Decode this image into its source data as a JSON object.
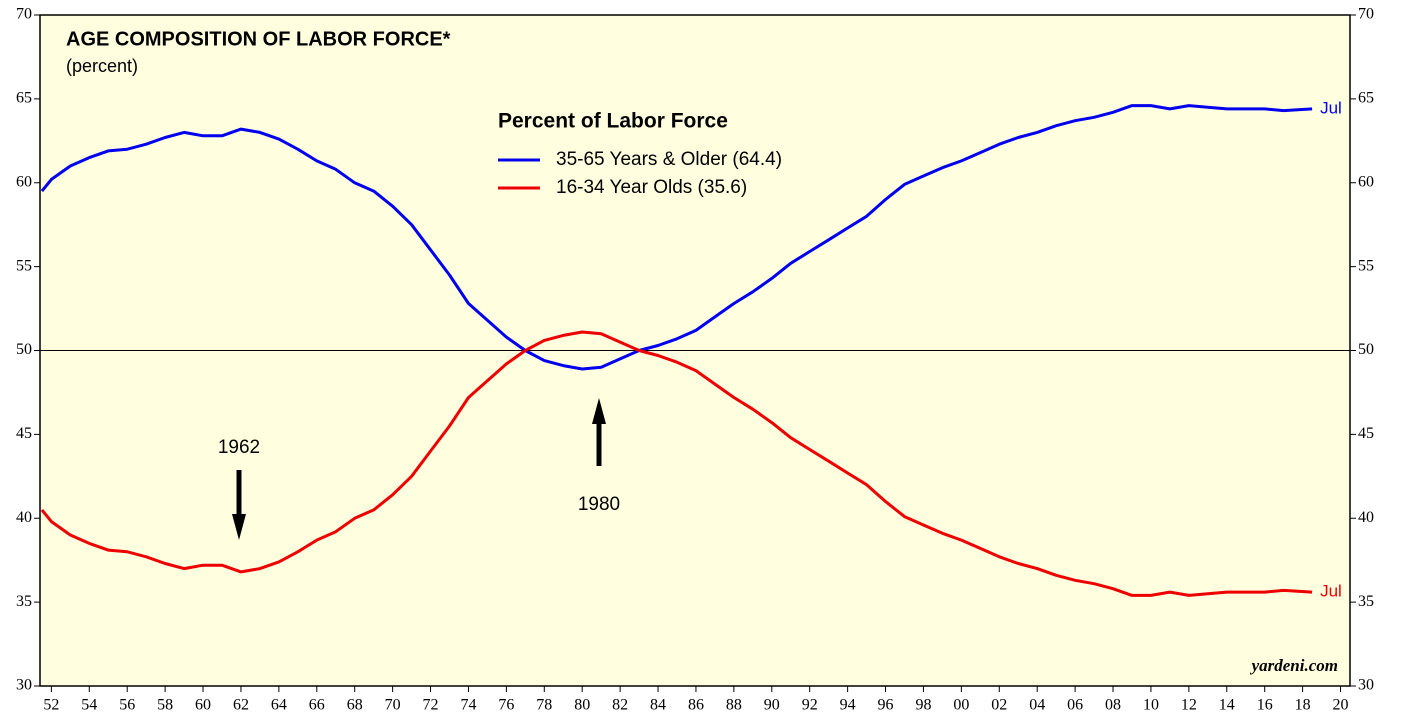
{
  "chart_data": {
    "type": "line",
    "title": "AGE COMPOSITION OF LABOR FORCE*",
    "subtitle": "(percent)",
    "legend_title": "Percent of Labor Force",
    "source": "yardeni.com",
    "annotations": [
      "1962",
      "1980"
    ],
    "reference_line": 50,
    "x": [
      1951.5,
      1952,
      1953,
      1954,
      1955,
      1956,
      1957,
      1958,
      1959,
      1960,
      1961,
      1962,
      1963,
      1964,
      1965,
      1966,
      1967,
      1968,
      1969,
      1970,
      1971,
      1972,
      1973,
      1974,
      1975,
      1976,
      1977,
      1978,
      1979,
      1980,
      1981,
      1982,
      1983,
      1984,
      1985,
      1986,
      1987,
      1988,
      1989,
      1990,
      1991,
      1992,
      1993,
      1994,
      1995,
      1996,
      1997,
      1998,
      1999,
      2000,
      2001,
      2002,
      2003,
      2004,
      2005,
      2006,
      2007,
      2008,
      2009,
      2010,
      2011,
      2012,
      2013,
      2014,
      2015,
      2016,
      2017,
      2018.5
    ],
    "series": [
      {
        "name": "35-65 Years & Older (64.4)",
        "color": "#0000ee",
        "end_label": "Jul",
        "values": [
          59.5,
          60.2,
          61.0,
          61.5,
          61.9,
          62.0,
          62.3,
          62.7,
          63.0,
          62.8,
          62.8,
          63.2,
          63.0,
          62.6,
          62.0,
          61.3,
          60.8,
          60.0,
          59.5,
          58.6,
          57.5,
          56.0,
          54.5,
          52.8,
          51.8,
          50.8,
          50.0,
          49.4,
          49.1,
          48.9,
          49.0,
          49.5,
          50.0,
          50.3,
          50.7,
          51.2,
          52.0,
          52.8,
          53.5,
          54.3,
          55.2,
          55.9,
          56.6,
          57.3,
          58.0,
          59.0,
          59.9,
          60.4,
          60.9,
          61.3,
          61.8,
          62.3,
          62.7,
          63.0,
          63.4,
          63.7,
          63.9,
          64.2,
          64.6,
          64.6,
          64.4,
          64.6,
          64.5,
          64.4,
          64.4,
          64.4,
          64.3,
          64.4
        ]
      },
      {
        "name": "16-34 Year Olds (35.6)",
        "color": "#ee0000",
        "end_label": "Jul",
        "values": [
          40.5,
          39.8,
          39.0,
          38.5,
          38.1,
          38.0,
          37.7,
          37.3,
          37.0,
          37.2,
          37.2,
          36.8,
          37.0,
          37.4,
          38.0,
          38.7,
          39.2,
          40.0,
          40.5,
          41.4,
          42.5,
          44.0,
          45.5,
          47.2,
          48.2,
          49.2,
          50.0,
          50.6,
          50.9,
          51.1,
          51.0,
          50.5,
          50.0,
          49.7,
          49.3,
          48.8,
          48.0,
          47.2,
          46.5,
          45.7,
          44.8,
          44.1,
          43.4,
          42.7,
          42.0,
          41.0,
          40.1,
          39.6,
          39.1,
          38.7,
          38.2,
          37.7,
          37.3,
          37.0,
          36.6,
          36.3,
          36.1,
          35.8,
          35.4,
          35.4,
          35.6,
          35.4,
          35.5,
          35.6,
          35.6,
          35.6,
          35.7,
          35.6
        ]
      }
    ],
    "xlim": [
      1951.4,
      2020.5
    ],
    "xticks": [
      {
        "value": 1952,
        "label": "52"
      },
      {
        "value": 1954,
        "label": "54"
      },
      {
        "value": 1956,
        "label": "56"
      },
      {
        "value": 1958,
        "label": "58"
      },
      {
        "value": 1960,
        "label": "60"
      },
      {
        "value": 1962,
        "label": "62"
      },
      {
        "value": 1964,
        "label": "64"
      },
      {
        "value": 1966,
        "label": "66"
      },
      {
        "value": 1968,
        "label": "68"
      },
      {
        "value": 1970,
        "label": "70"
      },
      {
        "value": 1972,
        "label": "72"
      },
      {
        "value": 1974,
        "label": "74"
      },
      {
        "value": 1976,
        "label": "76"
      },
      {
        "value": 1978,
        "label": "78"
      },
      {
        "value": 1980,
        "label": "80"
      },
      {
        "value": 1982,
        "label": "82"
      },
      {
        "value": 1984,
        "label": "84"
      },
      {
        "value": 1986,
        "label": "86"
      },
      {
        "value": 1988,
        "label": "88"
      },
      {
        "value": 1990,
        "label": "90"
      },
      {
        "value": 1992,
        "label": "92"
      },
      {
        "value": 1994,
        "label": "94"
      },
      {
        "value": 1996,
        "label": "96"
      },
      {
        "value": 1998,
        "label": "98"
      },
      {
        "value": 2000,
        "label": "00"
      },
      {
        "value": 2002,
        "label": "02"
      },
      {
        "value": 2004,
        "label": "04"
      },
      {
        "value": 2006,
        "label": "06"
      },
      {
        "value": 2008,
        "label": "08"
      },
      {
        "value": 2010,
        "label": "10"
      },
      {
        "value": 2012,
        "label": "12"
      },
      {
        "value": 2014,
        "label": "14"
      },
      {
        "value": 2016,
        "label": "16"
      },
      {
        "value": 2018,
        "label": "18"
      },
      {
        "value": 2020,
        "label": "20"
      }
    ],
    "ylim": [
      30,
      70
    ],
    "yticks": [
      30,
      35,
      40,
      45,
      50,
      55,
      60,
      65,
      70
    ]
  }
}
